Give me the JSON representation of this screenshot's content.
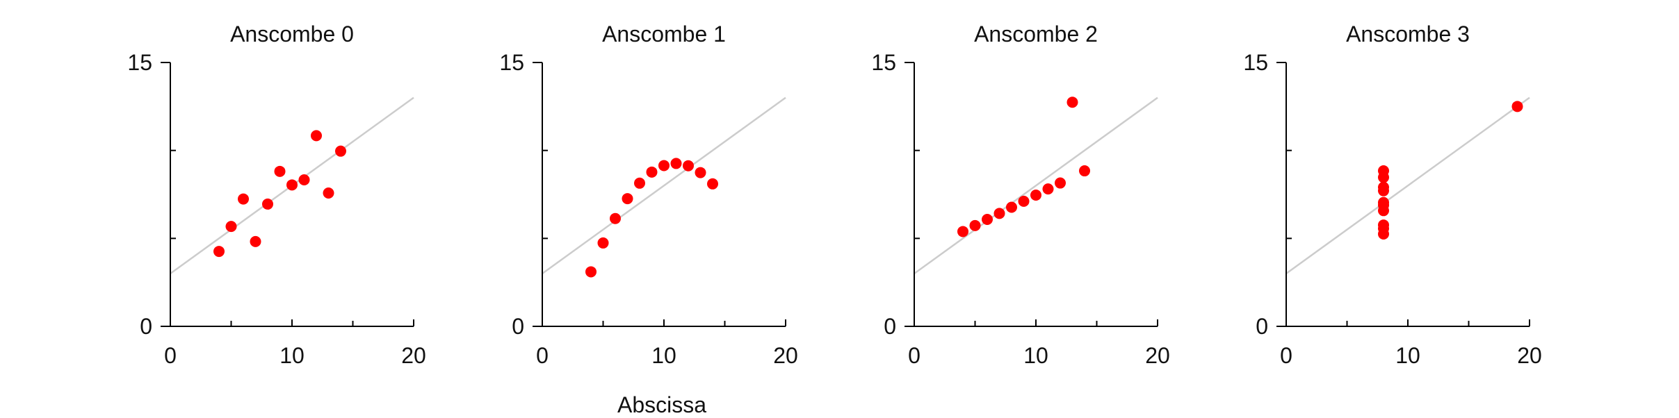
{
  "chart_data": [
    {
      "type": "scatter",
      "title": "Anscombe 0",
      "xlim": [
        0,
        20
      ],
      "ylim": [
        0,
        15
      ],
      "x_ticks": [
        0,
        10,
        20
      ],
      "y_ticks": [
        0,
        15
      ],
      "x_minor_ticks": [
        5,
        15
      ],
      "y_minor_ticks": [
        5,
        10
      ],
      "fit_line": {
        "intercept": 3.0,
        "slope": 0.5
      },
      "points": [
        [
          10,
          8.04
        ],
        [
          8,
          6.95
        ],
        [
          13,
          7.58
        ],
        [
          9,
          8.81
        ],
        [
          11,
          8.33
        ],
        [
          14,
          9.96
        ],
        [
          6,
          7.24
        ],
        [
          4,
          4.26
        ],
        [
          12,
          10.84
        ],
        [
          7,
          4.82
        ],
        [
          5,
          5.68
        ]
      ]
    },
    {
      "type": "scatter",
      "title": "Anscombe 1",
      "xlim": [
        0,
        20
      ],
      "ylim": [
        0,
        15
      ],
      "x_ticks": [
        0,
        10,
        20
      ],
      "y_ticks": [
        0,
        15
      ],
      "x_minor_ticks": [
        5,
        15
      ],
      "y_minor_ticks": [
        5,
        10
      ],
      "fit_line": {
        "intercept": 3.0,
        "slope": 0.5
      },
      "points": [
        [
          10,
          9.14
        ],
        [
          8,
          8.14
        ],
        [
          13,
          8.74
        ],
        [
          9,
          8.77
        ],
        [
          11,
          9.26
        ],
        [
          14,
          8.1
        ],
        [
          6,
          6.13
        ],
        [
          4,
          3.1
        ],
        [
          12,
          9.13
        ],
        [
          7,
          7.26
        ],
        [
          5,
          4.74
        ]
      ]
    },
    {
      "type": "scatter",
      "title": "Anscombe 2",
      "xlim": [
        0,
        20
      ],
      "ylim": [
        0,
        15
      ],
      "x_ticks": [
        0,
        10,
        20
      ],
      "y_ticks": [
        0,
        15
      ],
      "x_minor_ticks": [
        5,
        15
      ],
      "y_minor_ticks": [
        5,
        10
      ],
      "fit_line": {
        "intercept": 3.0,
        "slope": 0.5
      },
      "points": [
        [
          10,
          7.46
        ],
        [
          8,
          6.77
        ],
        [
          13,
          12.74
        ],
        [
          9,
          7.11
        ],
        [
          11,
          7.81
        ],
        [
          14,
          8.84
        ],
        [
          6,
          6.08
        ],
        [
          4,
          5.39
        ],
        [
          12,
          8.15
        ],
        [
          7,
          6.42
        ],
        [
          5,
          5.73
        ]
      ]
    },
    {
      "type": "scatter",
      "title": "Anscombe 3",
      "xlim": [
        0,
        20
      ],
      "ylim": [
        0,
        15
      ],
      "x_ticks": [
        0,
        10,
        20
      ],
      "y_ticks": [
        0,
        15
      ],
      "x_minor_ticks": [
        5,
        15
      ],
      "y_minor_ticks": [
        5,
        10
      ],
      "fit_line": {
        "intercept": 3.0,
        "slope": 0.5
      },
      "points": [
        [
          8,
          6.58
        ],
        [
          8,
          5.76
        ],
        [
          8,
          7.71
        ],
        [
          8,
          8.84
        ],
        [
          8,
          8.47
        ],
        [
          8,
          7.04
        ],
        [
          8,
          5.25
        ],
        [
          19,
          12.5
        ],
        [
          8,
          5.56
        ],
        [
          8,
          7.91
        ],
        [
          8,
          6.89
        ]
      ]
    }
  ],
  "xlabel": "Abscissa",
  "colors": {
    "points": "#ff0000",
    "fit_line": "#cccccc",
    "axis": "#000000"
  }
}
